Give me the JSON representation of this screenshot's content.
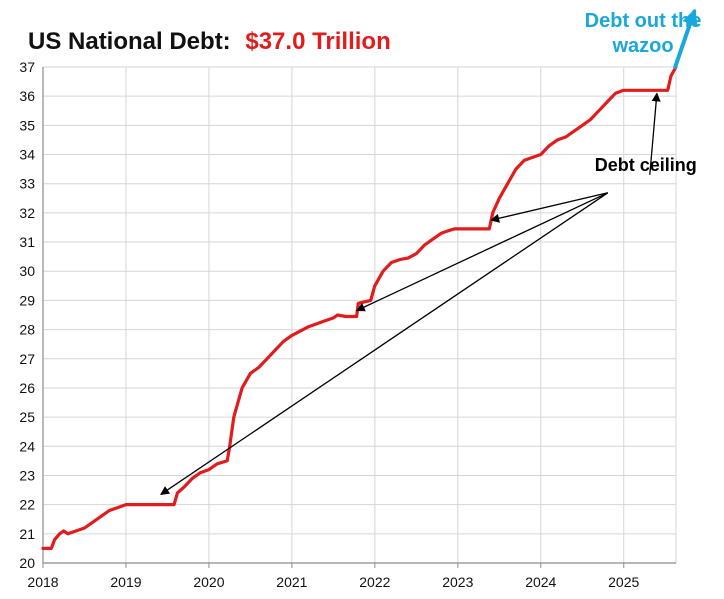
{
  "chart_data": {
    "type": "line",
    "title": "US National Debt:",
    "title_value": "$37.0 Trillion",
    "xlabel": "",
    "ylabel": "",
    "xlim": [
      2018,
      2025.63
    ],
    "ylim": [
      20,
      37
    ],
    "x_ticks": [
      "2018",
      "2019",
      "2020",
      "2021",
      "2022",
      "2023",
      "2024",
      "2025"
    ],
    "y_ticks": [
      "20",
      "21",
      "22",
      "23",
      "24",
      "25",
      "26",
      "27",
      "28",
      "29",
      "30",
      "31",
      "32",
      "33",
      "34",
      "35",
      "36",
      "37"
    ],
    "grid": true,
    "series": [
      {
        "name": "US National Debt ($ Trillion)",
        "color": "#e11c1c",
        "points": [
          [
            2018.0,
            20.5
          ],
          [
            2018.1,
            20.5
          ],
          [
            2018.14,
            20.8
          ],
          [
            2018.2,
            21.0
          ],
          [
            2018.25,
            21.1
          ],
          [
            2018.3,
            21.0
          ],
          [
            2018.4,
            21.1
          ],
          [
            2018.5,
            21.2
          ],
          [
            2018.6,
            21.4
          ],
          [
            2018.7,
            21.6
          ],
          [
            2018.8,
            21.8
          ],
          [
            2018.9,
            21.9
          ],
          [
            2019.0,
            22.0
          ],
          [
            2019.15,
            22.0
          ],
          [
            2019.58,
            22.0
          ],
          [
            2019.62,
            22.4
          ],
          [
            2019.7,
            22.6
          ],
          [
            2019.8,
            22.9
          ],
          [
            2019.9,
            23.1
          ],
          [
            2020.0,
            23.2
          ],
          [
            2020.1,
            23.4
          ],
          [
            2020.22,
            23.5
          ],
          [
            2020.25,
            24.0
          ],
          [
            2020.3,
            25.0
          ],
          [
            2020.4,
            26.0
          ],
          [
            2020.5,
            26.5
          ],
          [
            2020.6,
            26.7
          ],
          [
            2020.7,
            27.0
          ],
          [
            2020.8,
            27.3
          ],
          [
            2020.9,
            27.6
          ],
          [
            2021.0,
            27.8
          ],
          [
            2021.2,
            28.1
          ],
          [
            2021.4,
            28.3
          ],
          [
            2021.5,
            28.4
          ],
          [
            2021.55,
            28.5
          ],
          [
            2021.65,
            28.45
          ],
          [
            2021.78,
            28.45
          ],
          [
            2021.8,
            28.9
          ],
          [
            2021.95,
            29.0
          ],
          [
            2022.0,
            29.5
          ],
          [
            2022.1,
            30.0
          ],
          [
            2022.2,
            30.3
          ],
          [
            2022.3,
            30.4
          ],
          [
            2022.4,
            30.45
          ],
          [
            2022.5,
            30.6
          ],
          [
            2022.6,
            30.9
          ],
          [
            2022.7,
            31.1
          ],
          [
            2022.8,
            31.3
          ],
          [
            2022.9,
            31.4
          ],
          [
            2022.96,
            31.45
          ],
          [
            2023.38,
            31.45
          ],
          [
            2023.42,
            32.0
          ],
          [
            2023.5,
            32.5
          ],
          [
            2023.6,
            33.0
          ],
          [
            2023.7,
            33.5
          ],
          [
            2023.8,
            33.8
          ],
          [
            2023.9,
            33.9
          ],
          [
            2024.0,
            34.0
          ],
          [
            2024.1,
            34.3
          ],
          [
            2024.2,
            34.5
          ],
          [
            2024.3,
            34.6
          ],
          [
            2024.4,
            34.8
          ],
          [
            2024.5,
            35.0
          ],
          [
            2024.6,
            35.2
          ],
          [
            2024.7,
            35.5
          ],
          [
            2024.8,
            35.8
          ],
          [
            2024.9,
            36.1
          ],
          [
            2025.0,
            36.2
          ],
          [
            2025.53,
            36.2
          ],
          [
            2025.57,
            36.7
          ],
          [
            2025.63,
            37.0
          ]
        ]
      }
    ],
    "annotations": [
      {
        "text": "Debt ceiling",
        "color": "#000000",
        "label_anchor": [
          2025.29,
          33.1
        ],
        "arrow_targets": [
          [
            2019.42,
            22.35
          ],
          [
            2021.78,
            28.65
          ],
          [
            2023.4,
            31.75
          ],
          [
            2025.4,
            36.1
          ]
        ]
      },
      {
        "lines": [
          "Debt out the",
          "wazoo"
        ],
        "color": "#1aa7dc",
        "arrow_from": [
          2025.62,
          37.0
        ],
        "arrow_to": [
          2025.85,
          38.9
        ]
      }
    ],
    "colors": {
      "title": "#111111",
      "title_value": "#e11c1c",
      "grid": "#d6d6d6",
      "axis": "#8c8c8c",
      "tick_text": "#111111",
      "line": "#e11c1c",
      "arrow": "#000000",
      "callout": "#1aa7dc"
    }
  }
}
